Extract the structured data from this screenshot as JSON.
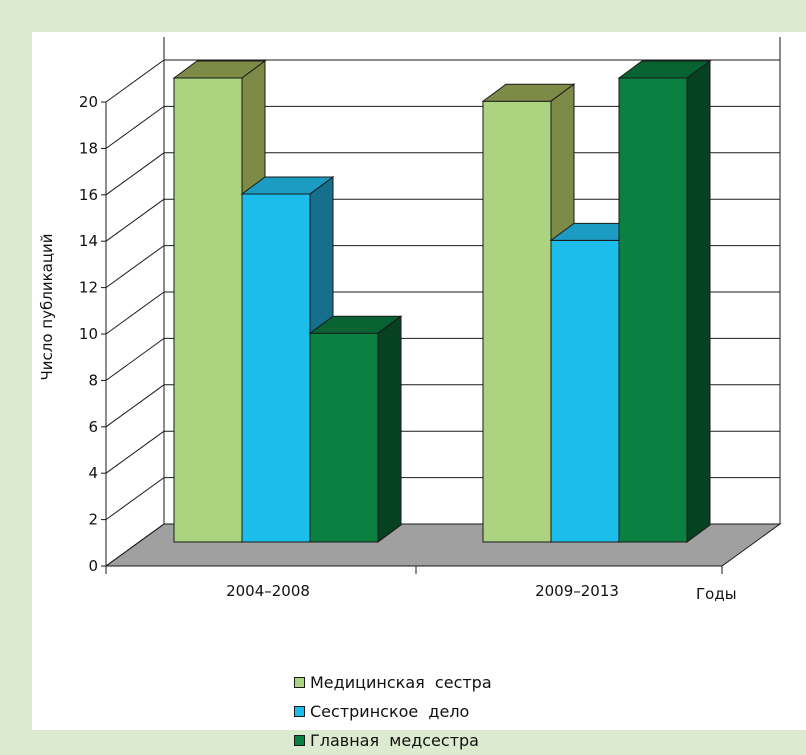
{
  "chart_data": {
    "type": "bar",
    "style": "3d-clustered",
    "categories": [
      "2004–2008",
      "2009–2013"
    ],
    "series": [
      {
        "name": "Медицинская  сестра",
        "values": [
          20,
          19
        ],
        "color": "#acd480",
        "side_color": "#7e8b47",
        "top_color": "#7e8b47"
      },
      {
        "name": "Сестринское  дело",
        "values": [
          15,
          13
        ],
        "color": "#1dbdeb",
        "side_color": "#166f8c",
        "top_color": "#1c9cc2"
      },
      {
        "name": "Главная  медсестра",
        "values": [
          9,
          20
        ],
        "color": "#0a8140",
        "side_color": "#064121",
        "top_color": "#086333"
      }
    ],
    "ylabel": "Число публикаций",
    "xlabel": "Годы",
    "ylim": [
      0,
      20
    ],
    "yticks": [
      0,
      2,
      4,
      6,
      8,
      10,
      12,
      14,
      16,
      18,
      20
    ],
    "grid": true,
    "legend_position": "bottom"
  }
}
